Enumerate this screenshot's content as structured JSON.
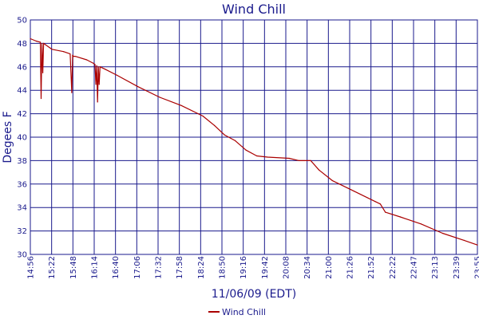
{
  "chart_data": {
    "type": "line",
    "title": "Wind Chill",
    "xlabel": "11/06/09 (EDT)",
    "ylabel": "Degees F",
    "ylim": [
      30,
      50
    ],
    "y_ticks": [
      30,
      32,
      34,
      36,
      38,
      40,
      42,
      44,
      46,
      48,
      50
    ],
    "x_tick_labels": [
      "14:56",
      "15:22",
      "15:48",
      "16:14",
      "16:40",
      "17:06",
      "17:32",
      "17:58",
      "18:24",
      "18:50",
      "19:16",
      "19:42",
      "20:08",
      "20:34",
      "21:00",
      "21:26",
      "21:52",
      "22:22",
      "22:47",
      "23:13",
      "23:39",
      "23:55"
    ],
    "grid": true,
    "legend_position": "bottom",
    "colors": {
      "series": "#aa0000",
      "text": "#1a1a8c",
      "grid": "#1a1a8c"
    },
    "series": [
      {
        "name": "Wind Chill",
        "x": [
          "14:56",
          "15:03",
          "15:08",
          "15:09",
          "15:10",
          "15:11",
          "15:12",
          "15:22",
          "15:36",
          "15:44",
          "15:46",
          "15:47",
          "15:48",
          "15:50",
          "16:04",
          "16:12",
          "16:14",
          "16:15",
          "16:16",
          "16:17",
          "16:18",
          "16:19",
          "16:20",
          "16:26",
          "16:40",
          "17:06",
          "17:32",
          "17:58",
          "18:24",
          "18:38",
          "18:50",
          "19:03",
          "19:16",
          "19:29",
          "19:42",
          "20:08",
          "20:20",
          "20:34",
          "20:44",
          "21:00",
          "21:26",
          "21:52",
          "21:58",
          "22:04",
          "22:22",
          "22:47",
          "23:13",
          "23:39",
          "23:55"
        ],
        "values": [
          48.4,
          48.2,
          48.1,
          43.3,
          48.0,
          45.5,
          48.0,
          47.5,
          47.3,
          47.1,
          43.8,
          47.0,
          46.9,
          46.9,
          46.6,
          46.3,
          46.2,
          44.5,
          46.1,
          43.0,
          46.0,
          44.5,
          46.0,
          45.8,
          45.3,
          44.3,
          43.4,
          42.7,
          41.8,
          41.0,
          40.2,
          39.7,
          38.9,
          38.4,
          38.3,
          38.2,
          38.0,
          38.0,
          37.2,
          36.3,
          35.4,
          34.5,
          34.3,
          33.6,
          33.2,
          32.6,
          31.8,
          31.2,
          30.8
        ]
      }
    ]
  }
}
